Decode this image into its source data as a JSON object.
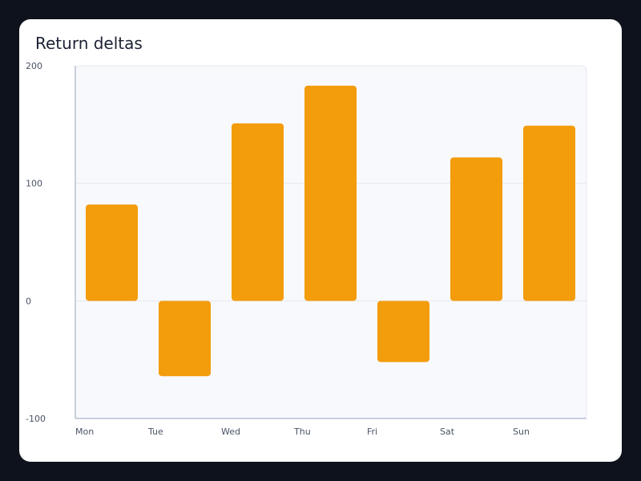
{
  "chart_data": {
    "type": "bar",
    "title": "Return deltas",
    "xlabel": "",
    "ylabel": "",
    "categories": [
      "Mon",
      "Tue",
      "Wed",
      "Thu",
      "Fri",
      "Sat",
      "Sun"
    ],
    "values": [
      82,
      -64,
      151,
      183,
      -52,
      122,
      149
    ],
    "ylim": [
      -100,
      200
    ],
    "yticks": [
      -100,
      0,
      100,
      200
    ],
    "grid": true,
    "legend": "none",
    "colors": {
      "bar": "#f39c0c",
      "plot_bg": "#f8f9fc",
      "grid": "#e3e7ef",
      "axis": "#b9c2d3",
      "card_bg": "#ffffff",
      "page_bg": "#0e121c"
    }
  }
}
